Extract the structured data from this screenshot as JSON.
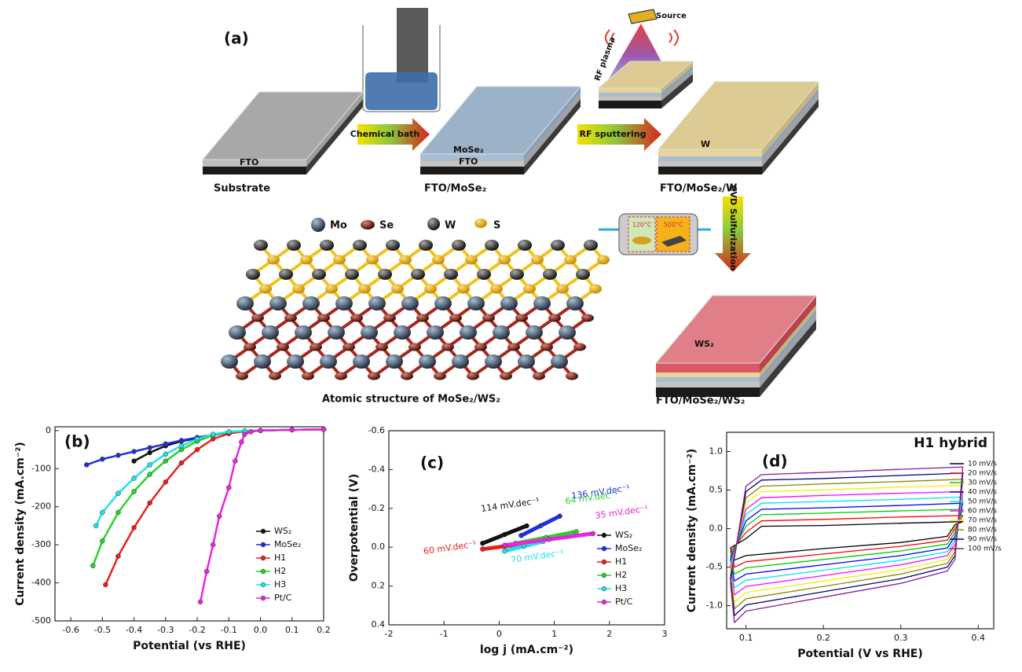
{
  "schematic": {
    "panel_label": "(a)",
    "substrate_layer": "FTO",
    "substrate_caption": "Substrate",
    "step1_arrow": "Chemical bath",
    "step1_layer_top": "MoSe₂",
    "step1_layer_bottom": "FTO",
    "step1_caption": "FTO/MoSe₂",
    "step2_arrow": "RF sputtering",
    "sputter_source": "Source",
    "sputter_plasma": "RF plasma",
    "step2_layer": "W",
    "step2_caption": "FTO/MoSe₂/W",
    "step3_arrow": "CVD Sulfurization",
    "furnace_zone1": "120°C",
    "furnace_zone2": "500°C",
    "step3_layer": "WS₂",
    "step3_caption": "FTO/MoSe₂/WS₂",
    "atom_legend": [
      "Mo",
      "Se",
      "W",
      "S"
    ],
    "structure_caption": "Atomic structure of MoSe₂/WS₂"
  },
  "chart_data": [
    {
      "type": "line",
      "panel_label": "(b)",
      "xlabel": "Potential (vs RHE)",
      "ylabel": "Current density (mA.cm⁻²)",
      "xlim": [
        -0.65,
        0.2
      ],
      "ylim": [
        -500,
        10
      ],
      "xticks": [
        -0.6,
        -0.5,
        -0.4,
        -0.3,
        -0.2,
        -0.1,
        {
          "value": 0,
          "label": "0.0"
        },
        0.1,
        0.2
      ],
      "yticks": [
        -500,
        -400,
        -300,
        -200,
        -100,
        0
      ],
      "legend": "lower right",
      "markers": true,
      "series": [
        {
          "name": "WS₂",
          "color": "#111111",
          "x": [
            -0.4,
            -0.35,
            -0.3,
            -0.25,
            -0.2,
            -0.15,
            -0.1,
            -0.05,
            0,
            0.1,
            0.2
          ],
          "values": [
            -80,
            -58,
            -40,
            -28,
            -20,
            -12,
            -5,
            -2,
            0,
            2,
            3
          ]
        },
        {
          "name": "MoSe₂",
          "color": "#1f2fe0",
          "x": [
            -0.55,
            -0.5,
            -0.45,
            -0.4,
            -0.35,
            -0.3,
            -0.25,
            -0.2,
            -0.15,
            -0.1,
            -0.05,
            0,
            0.1,
            0.2
          ],
          "values": [
            -90,
            -75,
            -65,
            -55,
            -45,
            -35,
            -26,
            -18,
            -11,
            -5,
            -2,
            0,
            2,
            3
          ]
        },
        {
          "name": "H1",
          "color": "#e8201c",
          "x": [
            -0.49,
            -0.45,
            -0.4,
            -0.35,
            -0.3,
            -0.25,
            -0.2,
            -0.15,
            -0.1,
            -0.05,
            0,
            0.1,
            0.2
          ],
          "values": [
            -405,
            -330,
            -255,
            -190,
            -135,
            -85,
            -50,
            -22,
            -8,
            -2,
            0,
            2,
            3
          ]
        },
        {
          "name": "H2",
          "color": "#2bd12b",
          "x": [
            -0.53,
            -0.5,
            -0.45,
            -0.4,
            -0.35,
            -0.3,
            -0.25,
            -0.2,
            -0.15,
            -0.1,
            -0.05,
            0,
            0.1,
            0.2
          ],
          "values": [
            -355,
            -290,
            -215,
            -160,
            -115,
            -80,
            -50,
            -28,
            -12,
            -4,
            -1,
            0,
            2,
            3
          ]
        },
        {
          "name": "H3",
          "color": "#22e0e8",
          "x": [
            -0.52,
            -0.5,
            -0.45,
            -0.4,
            -0.35,
            -0.3,
            -0.25,
            -0.2,
            -0.15,
            -0.1,
            -0.05,
            0,
            0.1,
            0.2
          ],
          "values": [
            -250,
            -215,
            -165,
            -125,
            -90,
            -62,
            -40,
            -22,
            -10,
            -3,
            -1,
            0,
            2,
            3
          ]
        },
        {
          "name": "Pt/C",
          "color": "#e826e0",
          "x": [
            -0.19,
            -0.17,
            -0.15,
            -0.13,
            -0.1,
            -0.08,
            -0.06,
            -0.05,
            -0.03,
            0,
            0.1,
            0.2
          ],
          "values": [
            -450,
            -370,
            -300,
            -225,
            -150,
            -80,
            -30,
            -10,
            -3,
            0,
            2,
            3
          ]
        }
      ]
    },
    {
      "type": "line",
      "panel_label": "(c)",
      "xlabel": "log j (mA.cm⁻²)",
      "ylabel": "Overpotential (V)",
      "xlim": [
        -2,
        3
      ],
      "ylim": [
        0.4,
        -0.6
      ],
      "xticks": [
        -2,
        -1,
        0,
        1,
        2,
        3
      ],
      "yticks": [
        -0.6,
        -0.4,
        -0.2,
        {
          "value": 0,
          "label": "0.0"
        },
        0.2,
        0.4
      ],
      "legend": "lower right",
      "markers": true,
      "series": [
        {
          "name": "WS₂",
          "color": "#111111",
          "slope_label": "114 mV.dec⁻¹",
          "x": [
            -0.3,
            0.1,
            0.5
          ],
          "values": [
            -0.02,
            -0.065,
            -0.11
          ]
        },
        {
          "name": "MoSe₂",
          "color": "#1f2fe0",
          "slope_label": "136 mV.dec⁻¹",
          "x": [
            0.4,
            0.75,
            1.1
          ],
          "values": [
            -0.06,
            -0.11,
            -0.16
          ]
        },
        {
          "name": "H1",
          "color": "#e8201c",
          "slope_label": "60 mV.dec⁻¹",
          "x": [
            -0.3,
            0.1,
            0.5
          ],
          "values": [
            0.01,
            -0.005,
            -0.02
          ]
        },
        {
          "name": "H2",
          "color": "#2bd12b",
          "slope_label": "64 mV.dec⁻¹",
          "x": [
            0.3,
            0.85,
            1.4
          ],
          "values": [
            -0.02,
            -0.05,
            -0.08
          ]
        },
        {
          "name": "H3",
          "color": "#22e0e8",
          "slope_label": "70 mV.dec⁻¹",
          "x": [
            0.1,
            0.45,
            0.8
          ],
          "values": [
            0.02,
            -0.005,
            -0.03
          ]
        },
        {
          "name": "Pt/C",
          "color": "#e826e0",
          "slope_label": "35 mV.dec⁻¹",
          "x": [
            0.1,
            0.9,
            1.7
          ],
          "values": [
            -0.01,
            -0.04,
            -0.07
          ]
        }
      ]
    },
    {
      "type": "loop",
      "panel_label": "(d)",
      "title": "H1 hybrid",
      "xlabel": "Potential (V vs RHE)",
      "ylabel": "Current density (mA.cm⁻²)",
      "xlim": [
        0.075,
        0.42
      ],
      "ylim": [
        -1.3,
        1.25
      ],
      "xticks": [
        0.1,
        0.2,
        0.3,
        0.4
      ],
      "yticks": [
        {
          "value": -1,
          "label": "-1.0"
        },
        -0.5,
        {
          "value": 0,
          "label": "0.0"
        },
        0.5,
        {
          "value": 1,
          "label": "1.0"
        }
      ],
      "legend": "right",
      "markers": false,
      "x": [
        0.08,
        0.1,
        0.12,
        0.2,
        0.3,
        0.38,
        0.37,
        0.36,
        0.3,
        0.2,
        0.1,
        0.085
      ],
      "series": [
        {
          "name": "10 mV/s",
          "color": "#000000",
          "values": [
            -0.25,
            -0.13,
            0.03,
            0.04,
            0.07,
            0.09,
            0.05,
            -0.1,
            -0.18,
            -0.26,
            -0.35,
            -0.41
          ]
        },
        {
          "name": "20 mV/s",
          "color": "#ff0000",
          "values": [
            -0.3,
            -0.05,
            0.1,
            0.12,
            0.15,
            0.17,
            0.0,
            -0.15,
            -0.23,
            -0.33,
            -0.43,
            -0.5
          ]
        },
        {
          "name": "30 mV/s",
          "color": "#00cc00",
          "values": [
            -0.35,
            0.03,
            0.18,
            0.2,
            0.23,
            0.25,
            -0.05,
            -0.2,
            -0.29,
            -0.4,
            -0.51,
            -0.59
          ]
        },
        {
          "name": "40 mV/s",
          "color": "#0000ff",
          "values": [
            -0.4,
            0.1,
            0.25,
            0.27,
            0.3,
            0.33,
            -0.1,
            -0.25,
            -0.35,
            -0.47,
            -0.59,
            -0.68
          ]
        },
        {
          "name": "50 mV/s",
          "color": "#00e5ee",
          "values": [
            -0.45,
            0.18,
            0.33,
            0.35,
            0.38,
            0.41,
            -0.15,
            -0.3,
            -0.41,
            -0.54,
            -0.67,
            -0.77
          ]
        },
        {
          "name": "60 mV/s",
          "color": "#ff00ff",
          "values": [
            -0.5,
            0.25,
            0.4,
            0.43,
            0.46,
            0.48,
            -0.2,
            -0.35,
            -0.47,
            -0.61,
            -0.75,
            -0.86
          ]
        },
        {
          "name": "70 mV/s",
          "color": "#f0f000",
          "values": [
            -0.55,
            0.33,
            0.48,
            0.5,
            0.54,
            0.56,
            -0.25,
            -0.4,
            -0.53,
            -0.68,
            -0.83,
            -0.95
          ]
        },
        {
          "name": "80 mV/s",
          "color": "#8a8a00",
          "values": [
            -0.6,
            0.4,
            0.55,
            0.58,
            0.61,
            0.64,
            -0.3,
            -0.45,
            -0.59,
            -0.75,
            -0.91,
            -1.04
          ]
        },
        {
          "name": "90 mV/s",
          "color": "#000080",
          "values": [
            -0.65,
            0.48,
            0.63,
            0.65,
            0.69,
            0.72,
            -0.35,
            -0.5,
            -0.65,
            -0.82,
            -0.99,
            -1.13
          ]
        },
        {
          "name": "100 mV/s",
          "color": "#8b1a9b",
          "values": [
            -0.7,
            0.55,
            0.7,
            0.73,
            0.77,
            0.8,
            -0.4,
            -0.55,
            -0.71,
            -0.89,
            -1.07,
            -1.22
          ]
        }
      ]
    }
  ]
}
